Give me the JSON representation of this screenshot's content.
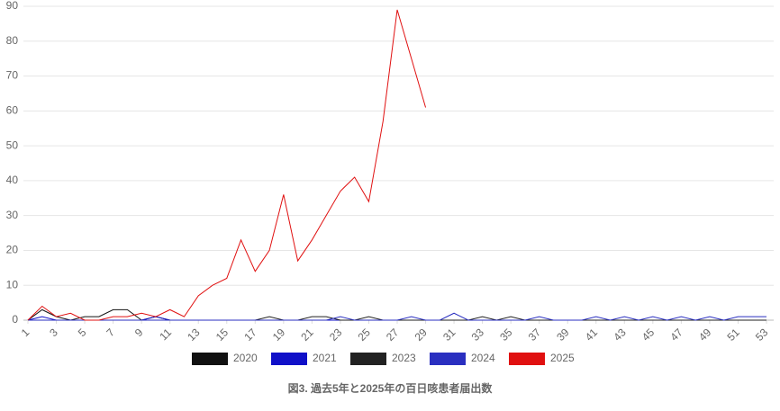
{
  "chart_data": {
    "type": "line",
    "title": "図3. 過去5年と2025年の百日咳患者届出数",
    "x": [
      1,
      2,
      3,
      4,
      5,
      6,
      7,
      8,
      9,
      10,
      11,
      12,
      13,
      14,
      15,
      16,
      17,
      18,
      19,
      20,
      21,
      22,
      23,
      24,
      25,
      26,
      27,
      28,
      29,
      30,
      31,
      32,
      33,
      34,
      35,
      36,
      37,
      38,
      39,
      40,
      41,
      42,
      43,
      44,
      45,
      46,
      47,
      48,
      49,
      50,
      51,
      52,
      53
    ],
    "xlim": [
      1,
      53
    ],
    "xticks": [
      1,
      3,
      5,
      7,
      9,
      11,
      13,
      15,
      17,
      19,
      21,
      23,
      25,
      27,
      29,
      31,
      33,
      35,
      37,
      39,
      41,
      43,
      45,
      47,
      49,
      51,
      53
    ],
    "ylim": [
      0,
      90
    ],
    "yticks": [
      0,
      10,
      20,
      30,
      40,
      50,
      60,
      70,
      80,
      90
    ],
    "grid": true,
    "legend": "bottom",
    "series": [
      {
        "name": "2020",
        "color": "#111111",
        "values": [
          0,
          3,
          1,
          0,
          1,
          1,
          3,
          3,
          0,
          1,
          0,
          0,
          0,
          0,
          0,
          0,
          0,
          0,
          0,
          0,
          0,
          0,
          0,
          0,
          0,
          0,
          0,
          0,
          0,
          0,
          0,
          0,
          0,
          0,
          0,
          0,
          0,
          0,
          0,
          0,
          0,
          0,
          0,
          0,
          0,
          0,
          0,
          0,
          0,
          0,
          0,
          0,
          0
        ]
      },
      {
        "name": "2021",
        "color": "#1010c8",
        "values": [
          0,
          1,
          0,
          0,
          0,
          0,
          0,
          0,
          0,
          1,
          0,
          0,
          0,
          0,
          0,
          0,
          0,
          0,
          0,
          0,
          0,
          0,
          0,
          0,
          0,
          0,
          0,
          0,
          0,
          0,
          0,
          0,
          0,
          0,
          0,
          0,
          0,
          0,
          0,
          0,
          0,
          0,
          0,
          0,
          0,
          0,
          0,
          0,
          0,
          0,
          0,
          0,
          0
        ]
      },
      {
        "name": "2023",
        "color": "#222222",
        "values": [
          0,
          0,
          0,
          0,
          0,
          0,
          0,
          0,
          0,
          0,
          0,
          0,
          0,
          0,
          0,
          0,
          0,
          1,
          0,
          0,
          1,
          1,
          0,
          0,
          1,
          0,
          0,
          0,
          0,
          0,
          0,
          0,
          1,
          0,
          1,
          0,
          0,
          0,
          0,
          0,
          0,
          0,
          0,
          0,
          0,
          0,
          0,
          0,
          0,
          0,
          0,
          0,
          0
        ]
      },
      {
        "name": "2024",
        "color": "#2a2fc0",
        "values": [
          0,
          0,
          0,
          0,
          0,
          0,
          0,
          0,
          0,
          0,
          0,
          0,
          0,
          0,
          0,
          0,
          0,
          0,
          0,
          0,
          0,
          0,
          1,
          0,
          0,
          0,
          0,
          1,
          0,
          0,
          2,
          0,
          0,
          0,
          0,
          0,
          1,
          0,
          0,
          0,
          1,
          0,
          1,
          0,
          1,
          0,
          1,
          0,
          1,
          0,
          1,
          1,
          1
        ]
      },
      {
        "name": "2025",
        "color": "#e01010",
        "values": [
          0,
          4,
          1,
          2,
          0,
          0,
          1,
          1,
          2,
          1,
          3,
          1,
          7,
          10,
          12,
          23,
          14,
          20,
          36,
          17,
          23,
          30,
          37,
          41,
          34,
          57,
          89,
          75,
          61,
          null,
          null,
          null,
          null,
          null,
          null,
          null,
          null,
          null,
          null,
          null,
          null,
          null,
          null,
          null,
          null,
          null,
          null,
          null,
          null,
          null,
          null,
          null,
          null
        ]
      }
    ]
  }
}
